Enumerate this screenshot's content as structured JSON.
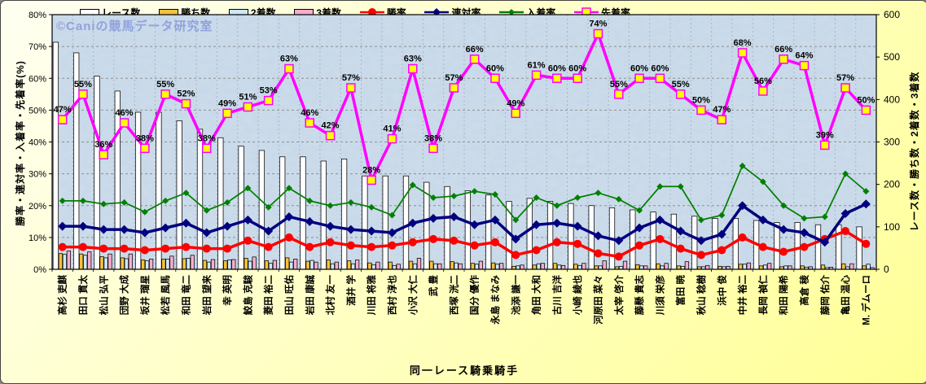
{
  "chart_data": {
    "type": "bar",
    "subtype": "combo-bar-line",
    "watermark": "©Caniの競馬データ研究室",
    "x_axis_title": "同一レース騎乗騎手",
    "y_left": {
      "title": "勝率・連対率・入着率・先着率(%)",
      "min": 0,
      "max": 80,
      "step": 10,
      "ticks": [
        "0%",
        "10%",
        "20%",
        "30%",
        "40%",
        "50%",
        "60%",
        "70%",
        "80%"
      ]
    },
    "y_right": {
      "title": "レース数・勝ち数・2着数・3着数",
      "min": 0,
      "max": 600,
      "step": 100,
      "ticks": [
        "0",
        "100",
        "200",
        "300",
        "400",
        "500",
        "600"
      ]
    },
    "grid": true,
    "legend_position": "top",
    "categories": [
      "高杉 吏麒",
      "田口 貫太",
      "松山 弘平",
      "団野 大成",
      "坂井 瑠星",
      "松若 風馬",
      "和田 竜二",
      "岩田 望来",
      "幸 英明",
      "鮫島 克駿",
      "菱田 裕二",
      "田山 旺佑",
      "岩田 康誠",
      "北村 友一",
      "酒井 学",
      "川田 将雅",
      "西村 淳也",
      "小沢 大仁",
      "武 豊",
      "西塚 洸二",
      "国分 優作",
      "永島 まなみ",
      "池添 謙一",
      "角田 大和",
      "古川 吉洋",
      "小崎 綾也",
      "河原田 菜々",
      "太宰 啓介",
      "藤懸 貴志",
      "川須 栄彦",
      "富田 暁",
      "秋山 稔樹",
      "浜中 俊",
      "中井 裕二",
      "長岡 禎仁",
      "和田 陽希",
      "高倉 稜",
      "藤岡 佑介",
      "亀田 温心",
      "M. デムーロ"
    ],
    "bar_series": [
      {
        "name": "レース数",
        "color": "#FFFFFF",
        "axis": "right",
        "values": [
          535,
          510,
          455,
          420,
          370,
          370,
          350,
          330,
          310,
          290,
          280,
          265,
          265,
          255,
          260,
          220,
          220,
          220,
          205,
          195,
          185,
          175,
          160,
          167,
          160,
          155,
          150,
          145,
          140,
          135,
          130,
          125,
          120,
          120,
          115,
          110,
          110,
          105,
          105,
          100
        ]
      },
      {
        "name": "勝ち数",
        "color": "#F5C23C",
        "axis": "right",
        "values": [
          37,
          36,
          30,
          27,
          22,
          24,
          25,
          21,
          20,
          26,
          20,
          27,
          19,
          22,
          20,
          15,
          17,
          19,
          19,
          18,
          14,
          15,
          7,
          10,
          14,
          12,
          8,
          6,
          11,
          13,
          8,
          6,
          7,
          12,
          8,
          6,
          8,
          10,
          13,
          8
        ]
      },
      {
        "name": "2着数",
        "color": "#CBE9FA",
        "axis": "right",
        "values": [
          35,
          33,
          27,
          25,
          20,
          24,
          26,
          17,
          22,
          19,
          14,
          17,
          21,
          13,
          13,
          11,
          9,
          13,
          13,
          15,
          12,
          12,
          8,
          13,
          10,
          9,
          8,
          7,
          8,
          8,
          7,
          6,
          6,
          12,
          10,
          8,
          5,
          4,
          6,
          12
        ]
      },
      {
        "name": "3着数",
        "color": "#F5AECE",
        "axis": "right",
        "values": [
          43,
          41,
          36,
          36,
          24,
          31,
          33,
          23,
          23,
          29,
          21,
          24,
          17,
          17,
          22,
          17,
          12,
          26,
          13,
          13,
          19,
          14,
          10,
          14,
          9,
          14,
          20,
          19,
          8,
          14,
          18,
          9,
          7,
          15,
          14,
          8,
          6,
          5,
          13,
          4
        ]
      }
    ],
    "line_series": [
      {
        "name": "勝率",
        "color": "#FF0000",
        "marker": "circle",
        "axis": "left",
        "values": [
          7,
          7,
          6.5,
          6.5,
          6,
          6.5,
          7,
          6.5,
          6.5,
          9,
          7,
          10,
          7,
          8.5,
          7.5,
          7,
          7.5,
          8.5,
          9.5,
          9,
          7.5,
          8.5,
          4.5,
          6,
          8.5,
          8,
          5,
          4,
          7.5,
          9.5,
          6.5,
          4.5,
          6,
          10,
          7,
          5.5,
          7,
          9.5,
          12,
          8
        ]
      },
      {
        "name": "連対率",
        "color": "#000080",
        "marker": "diamond",
        "axis": "left",
        "values": [
          13.5,
          13.5,
          12.5,
          12.5,
          11.5,
          13,
          14.5,
          11.5,
          13.5,
          15.5,
          12,
          16.5,
          15,
          13.5,
          12.5,
          12,
          11.5,
          14.5,
          16,
          16.5,
          14,
          15.5,
          9.5,
          14,
          14.5,
          13.5,
          10.5,
          9,
          13,
          15.5,
          12,
          9,
          11,
          20,
          15.5,
          12.5,
          11.5,
          8.5,
          17.5,
          20.5
        ]
      },
      {
        "name": "入着率",
        "color": "#008000",
        "marker": "diamond-small",
        "axis": "left",
        "values": [
          21.5,
          21.5,
          20.5,
          21,
          18,
          21.5,
          24,
          18.5,
          21,
          25.5,
          19.5,
          25.5,
          21.5,
          20,
          21,
          19.5,
          17,
          26.5,
          22.5,
          23,
          24.5,
          23.5,
          15.5,
          22.5,
          20,
          22.5,
          24,
          22,
          18.5,
          26,
          26,
          15.5,
          17,
          32.5,
          27.5,
          20,
          16,
          16.5,
          30,
          24.5
        ]
      },
      {
        "name": "先着率",
        "color": "#FF00FF",
        "marker": "square",
        "marker_fill": "#FFFF00",
        "show_labels": true,
        "label_suffix": "%",
        "axis": "left",
        "values": [
          47,
          55,
          36,
          46,
          38,
          55,
          52,
          38,
          49,
          51,
          53,
          63,
          46,
          42,
          57,
          28,
          41,
          63,
          38,
          57,
          66,
          60,
          49,
          61,
          60,
          60,
          74,
          55,
          60,
          60,
          55,
          50,
          47,
          68,
          56,
          66,
          64,
          39,
          57,
          50
        ]
      }
    ]
  }
}
